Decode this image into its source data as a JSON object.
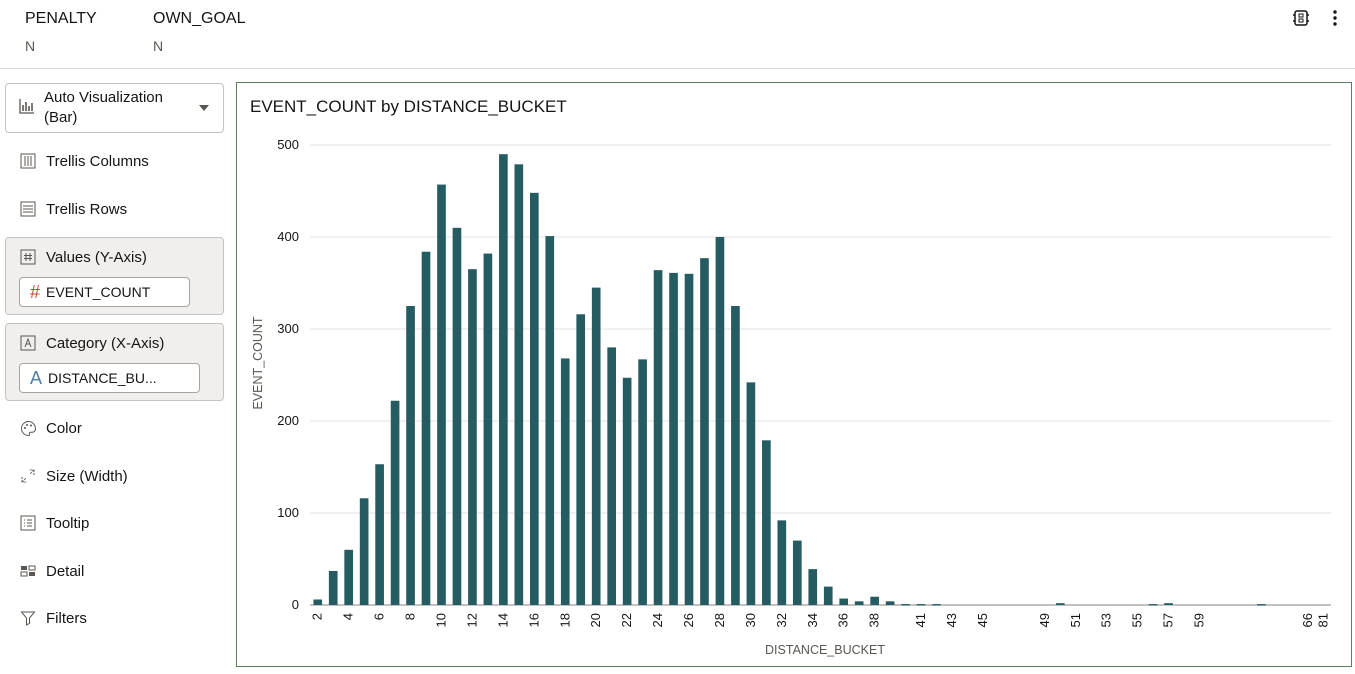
{
  "columns": [
    {
      "header": "PENALTY",
      "value": "N"
    },
    {
      "header": "OWN_GOAL",
      "value": "N"
    }
  ],
  "icons": {
    "top_right": [
      "data-chip-icon",
      "more-vertical-icon"
    ]
  },
  "panel": {
    "viz_select": "Auto Visualization (Bar)",
    "trellis_columns": "Trellis Columns",
    "trellis_rows": "Trellis Rows",
    "values_label": "Values (Y-Axis)",
    "values_pill": "EVENT_COUNT",
    "category_label": "Category (X-Axis)",
    "category_pill": "DISTANCE_BU...",
    "color": "Color",
    "size": "Size (Width)",
    "tooltip": "Tooltip",
    "detail": "Detail",
    "filters": "Filters"
  },
  "colors": {
    "bar": "#255c62",
    "accent_border": "#5b7f5e",
    "measure_icon": "#c74634",
    "attribute_icon": "#4f7fa8"
  },
  "chart_data": {
    "type": "bar",
    "title": "EVENT_COUNT by DISTANCE_BUCKET",
    "xlabel": "DISTANCE_BUCKET",
    "ylabel": "EVENT_COUNT",
    "ylim": [
      0,
      500
    ],
    "yticks": [
      0,
      100,
      200,
      300,
      400,
      500
    ],
    "grid": true,
    "categories": [
      "2",
      "3",
      "4",
      "5",
      "6",
      "7",
      "8",
      "9",
      "10",
      "11",
      "12",
      "13",
      "14",
      "15",
      "16",
      "17",
      "18",
      "19",
      "20",
      "21",
      "22",
      "23",
      "24",
      "25",
      "26",
      "27",
      "28",
      "29",
      "30",
      "31",
      "32",
      "33",
      "34",
      "35",
      "36",
      "37",
      "38",
      "39",
      "40",
      "41",
      "42",
      "43",
      "44",
      "45",
      "46",
      "47",
      "48",
      "49",
      "50",
      "51",
      "52",
      "53",
      "54",
      "55",
      "56",
      "57",
      "58",
      "59",
      "60",
      "61",
      "62",
      "63",
      "64",
      "65",
      "66",
      "81"
    ],
    "values": [
      6,
      37,
      60,
      116,
      153,
      222,
      325,
      384,
      457,
      410,
      365,
      382,
      490,
      479,
      448,
      401,
      268,
      316,
      345,
      280,
      247,
      267,
      364,
      361,
      360,
      377,
      400,
      325,
      242,
      179,
      92,
      70,
      39,
      20,
      7,
      4,
      9,
      4,
      1,
      1,
      1,
      0,
      0,
      0,
      0,
      0,
      0,
      0,
      2,
      0,
      0,
      0,
      0,
      0,
      1,
      2,
      0,
      0,
      0,
      0,
      0,
      1,
      0,
      0,
      0,
      0
    ],
    "xtick_labels": [
      "2",
      "4",
      "6",
      "8",
      "10",
      "12",
      "14",
      "16",
      "18",
      "20",
      "22",
      "24",
      "26",
      "28",
      "30",
      "32",
      "34",
      "36",
      "38",
      "41",
      "43",
      "45",
      "49",
      "51",
      "53",
      "55",
      "57",
      "59",
      "66",
      "81"
    ]
  }
}
